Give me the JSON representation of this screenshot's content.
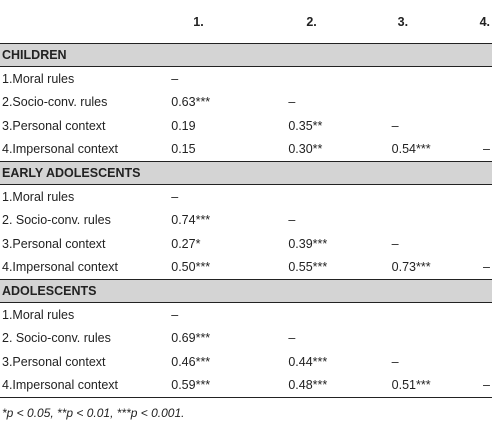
{
  "header": [
    "",
    "1.",
    "2.",
    "3.",
    "4."
  ],
  "groups": [
    {
      "title": "CHILDREN",
      "rows": [
        {
          "label": "1.Moral rules",
          "c1": "–",
          "c2": "",
          "c3": "",
          "c4": ""
        },
        {
          "label": "2.Socio-conv. rules",
          "c1": "0.63***",
          "c2": "–",
          "c3": "",
          "c4": ""
        },
        {
          "label": "3.Personal context",
          "c1": "0.19",
          "c2": "0.35**",
          "c3": "–",
          "c4": ""
        },
        {
          "label": "4.Impersonal context",
          "c1": "0.15",
          "c2": "0.30**",
          "c3": "0.54***",
          "c4": "–"
        }
      ]
    },
    {
      "title": "EARLY ADOLESCENTS",
      "rows": [
        {
          "label": "1.Moral rules",
          "c1": "–",
          "c2": "",
          "c3": "",
          "c4": ""
        },
        {
          "label": "2. Socio-conv. rules",
          "c1": "0.74***",
          "c2": "–",
          "c3": "",
          "c4": ""
        },
        {
          "label": "3.Personal context",
          "c1": "0.27*",
          "c2": "0.39***",
          "c3": "–",
          "c4": ""
        },
        {
          "label": "4.Impersonal context",
          "c1": "0.50***",
          "c2": "0.55***",
          "c3": "0.73***",
          "c4": "–"
        }
      ]
    },
    {
      "title": "ADOLESCENTS",
      "rows": [
        {
          "label": "1.Moral rules",
          "c1": "–",
          "c2": "",
          "c3": "",
          "c4": ""
        },
        {
          "label": "2. Socio-conv. rules",
          "c1": "0.69***",
          "c2": "–",
          "c3": "",
          "c4": ""
        },
        {
          "label": "3.Personal context",
          "c1": "0.46***",
          "c2": "0.44***",
          "c3": "–",
          "c4": ""
        },
        {
          "label": "4.Impersonal context",
          "c1": "0.59***",
          "c2": "0.48***",
          "c3": "0.51***",
          "c4": "–"
        }
      ]
    }
  ],
  "footnote": "*p < 0.05, **p < 0.01, ***p < 0.001."
}
